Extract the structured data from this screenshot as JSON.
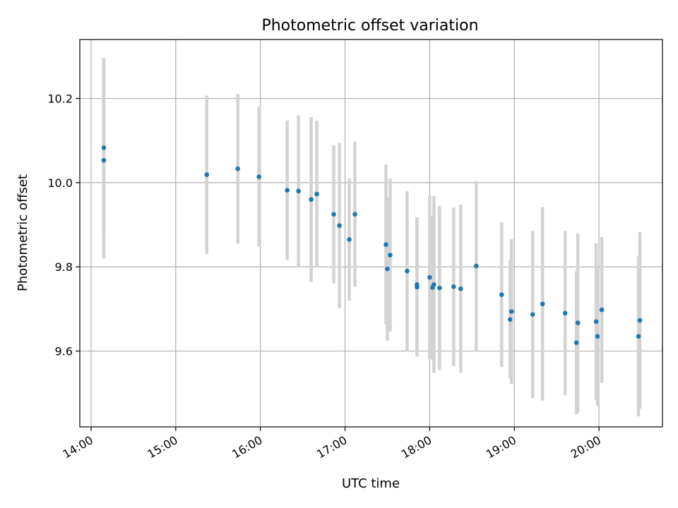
{
  "chart_data": {
    "type": "scatter",
    "title": "Photometric offset variation",
    "xlabel": "UTC time",
    "ylabel": "Photometric offset",
    "xlim": [
      "13:52",
      "20:45"
    ],
    "ylim": [
      9.42,
      10.34
    ],
    "grid": true,
    "x_ticks": [
      "14:00",
      "15:00",
      "16:00",
      "17:00",
      "18:00",
      "19:00",
      "20:00"
    ],
    "y_ticks": [
      "9.6",
      "9.8",
      "10.0",
      "10.2"
    ],
    "colors": {
      "point": "#1f77b4",
      "errorbar": "#d3d3d3",
      "grid": "#b0b0b0"
    },
    "points": [
      {
        "x": "14:09",
        "y": 10.083,
        "err": 0.213
      },
      {
        "x": "14:09",
        "y": 10.053,
        "err": 0.233
      },
      {
        "x": "15:22",
        "y": 10.019,
        "err": 0.188
      },
      {
        "x": "15:44",
        "y": 10.033,
        "err": 0.178
      },
      {
        "x": "15:59",
        "y": 10.014,
        "err": 0.166
      },
      {
        "x": "16:19",
        "y": 9.982,
        "err": 0.166
      },
      {
        "x": "16:27",
        "y": 9.98,
        "err": 0.18
      },
      {
        "x": "16:36",
        "y": 9.96,
        "err": 0.196
      },
      {
        "x": "16:40",
        "y": 9.973,
        "err": 0.174
      },
      {
        "x": "16:52",
        "y": 9.925,
        "err": 0.164
      },
      {
        "x": "16:56",
        "y": 9.898,
        "err": 0.196
      },
      {
        "x": "17:03",
        "y": 9.865,
        "err": 0.145
      },
      {
        "x": "17:07",
        "y": 9.925,
        "err": 0.172
      },
      {
        "x": "17:29",
        "y": 9.853,
        "err": 0.19
      },
      {
        "x": "17:30",
        "y": 9.795,
        "err": 0.17
      },
      {
        "x": "17:32",
        "y": 9.828,
        "err": 0.182
      },
      {
        "x": "17:44",
        "y": 9.79,
        "err": 0.19
      },
      {
        "x": "17:51",
        "y": 9.758,
        "err": 0.16
      },
      {
        "x": "17:51",
        "y": 9.752,
        "err": 0.165
      },
      {
        "x": "18:00",
        "y": 9.775,
        "err": 0.195
      },
      {
        "x": "18:02",
        "y": 9.751,
        "err": 0.17
      },
      {
        "x": "18:03",
        "y": 9.758,
        "err": 0.21
      },
      {
        "x": "18:07",
        "y": 9.75,
        "err": 0.195
      },
      {
        "x": "18:17",
        "y": 9.753,
        "err": 0.188
      },
      {
        "x": "18:22",
        "y": 9.748,
        "err": 0.2
      },
      {
        "x": "18:33",
        "y": 9.802,
        "err": 0.202
      },
      {
        "x": "18:51",
        "y": 9.734,
        "err": 0.172
      },
      {
        "x": "18:57",
        "y": 9.675,
        "err": 0.14
      },
      {
        "x": "18:58",
        "y": 9.694,
        "err": 0.172
      },
      {
        "x": "19:13",
        "y": 9.687,
        "err": 0.198
      },
      {
        "x": "19:20",
        "y": 9.712,
        "err": 0.23
      },
      {
        "x": "19:36",
        "y": 9.69,
        "err": 0.195
      },
      {
        "x": "19:44",
        "y": 9.62,
        "err": 0.17
      },
      {
        "x": "19:45",
        "y": 9.667,
        "err": 0.212
      },
      {
        "x": "19:58",
        "y": 9.67,
        "err": 0.186
      },
      {
        "x": "19:59",
        "y": 9.635,
        "err": 0.165
      },
      {
        "x": "20:02",
        "y": 9.698,
        "err": 0.173
      },
      {
        "x": "20:28",
        "y": 9.635,
        "err": 0.19
      },
      {
        "x": "20:29",
        "y": 9.673,
        "err": 0.21
      }
    ]
  }
}
